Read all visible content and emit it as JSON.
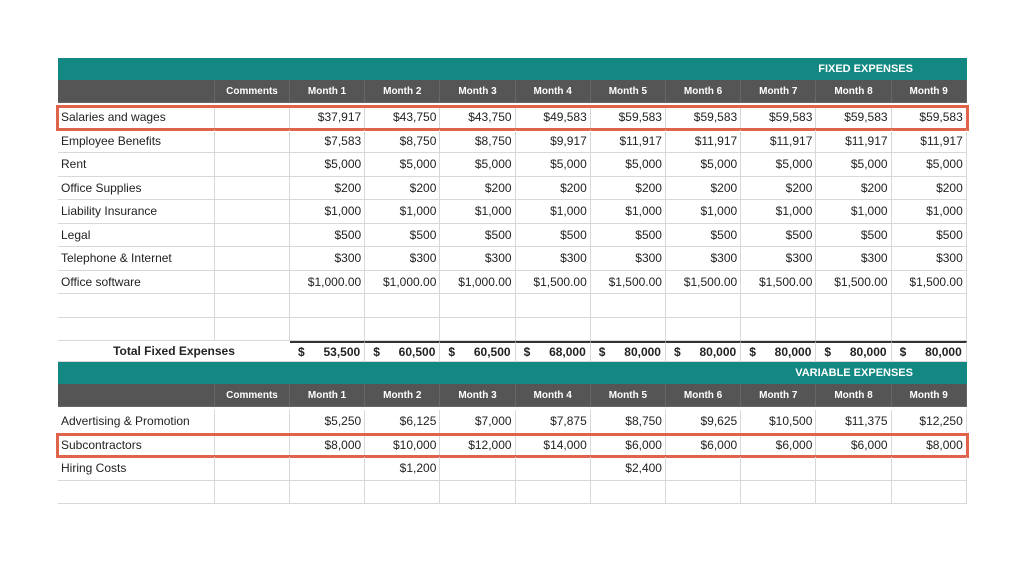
{
  "sections": [
    {
      "title": "FIXED EXPENSES",
      "header": {
        "comments": "Comments",
        "months": [
          "Month 1",
          "Month 2",
          "Month 3",
          "Month 4",
          "Month 5",
          "Month 6",
          "Month 7",
          "Month 8",
          "Month 9"
        ]
      },
      "rows": [
        {
          "label": "Salaries and wages",
          "highlight": true,
          "values": [
            "$37,917",
            "$43,750",
            "$43,750",
            "$49,583",
            "$59,583",
            "$59,583",
            "$59,583",
            "$59,583",
            "$59,583"
          ]
        },
        {
          "label": "Employee Benefits",
          "values": [
            "$7,583",
            "$8,750",
            "$8,750",
            "$9,917",
            "$11,917",
            "$11,917",
            "$11,917",
            "$11,917",
            "$11,917"
          ]
        },
        {
          "label": "Rent",
          "values": [
            "$5,000",
            "$5,000",
            "$5,000",
            "$5,000",
            "$5,000",
            "$5,000",
            "$5,000",
            "$5,000",
            "$5,000"
          ]
        },
        {
          "label": "Office Supplies",
          "values": [
            "$200",
            "$200",
            "$200",
            "$200",
            "$200",
            "$200",
            "$200",
            "$200",
            "$200"
          ]
        },
        {
          "label": "Liability Insurance",
          "values": [
            "$1,000",
            "$1,000",
            "$1,000",
            "$1,000",
            "$1,000",
            "$1,000",
            "$1,000",
            "$1,000",
            "$1,000"
          ]
        },
        {
          "label": "Legal",
          "values": [
            "$500",
            "$500",
            "$500",
            "$500",
            "$500",
            "$500",
            "$500",
            "$500",
            "$500"
          ]
        },
        {
          "label": "Telephone & Internet",
          "values": [
            "$300",
            "$300",
            "$300",
            "$300",
            "$300",
            "$300",
            "$300",
            "$300",
            "$300"
          ]
        },
        {
          "label": "Office software",
          "values": [
            "$1,000.00",
            "$1,000.00",
            "$1,000.00",
            "$1,500.00",
            "$1,500.00",
            "$1,500.00",
            "$1,500.00",
            "$1,500.00",
            "$1,500.00"
          ]
        }
      ],
      "total": {
        "label": "Total Fixed Expenses",
        "currency": "$",
        "amounts": [
          "53,500",
          "60,500",
          "60,500",
          "68,000",
          "80,000",
          "80,000",
          "80,000",
          "80,000",
          "80,000"
        ]
      }
    },
    {
      "title": "VARIABLE EXPENSES",
      "header": {
        "comments": "Comments",
        "months": [
          "Month 1",
          "Month 2",
          "Month 3",
          "Month 4",
          "Month 5",
          "Month 6",
          "Month 7",
          "Month 8",
          "Month 9"
        ]
      },
      "rows": [
        {
          "label": "Advertising & Promotion",
          "values": [
            "$5,250",
            "$6,125",
            "$7,000",
            "$7,875",
            "$8,750",
            "$9,625",
            "$10,500",
            "$11,375",
            "$12,250"
          ]
        },
        {
          "label": "Subcontractors",
          "highlight": true,
          "values": [
            "$8,000",
            "$10,000",
            "$12,000",
            "$14,000",
            "$6,000",
            "$6,000",
            "$6,000",
            "$6,000",
            "$8,000"
          ]
        },
        {
          "label": "Hiring Costs",
          "values": [
            null,
            "$1,200",
            null,
            null,
            "$2,400",
            null,
            null,
            null,
            null
          ]
        }
      ]
    }
  ]
}
